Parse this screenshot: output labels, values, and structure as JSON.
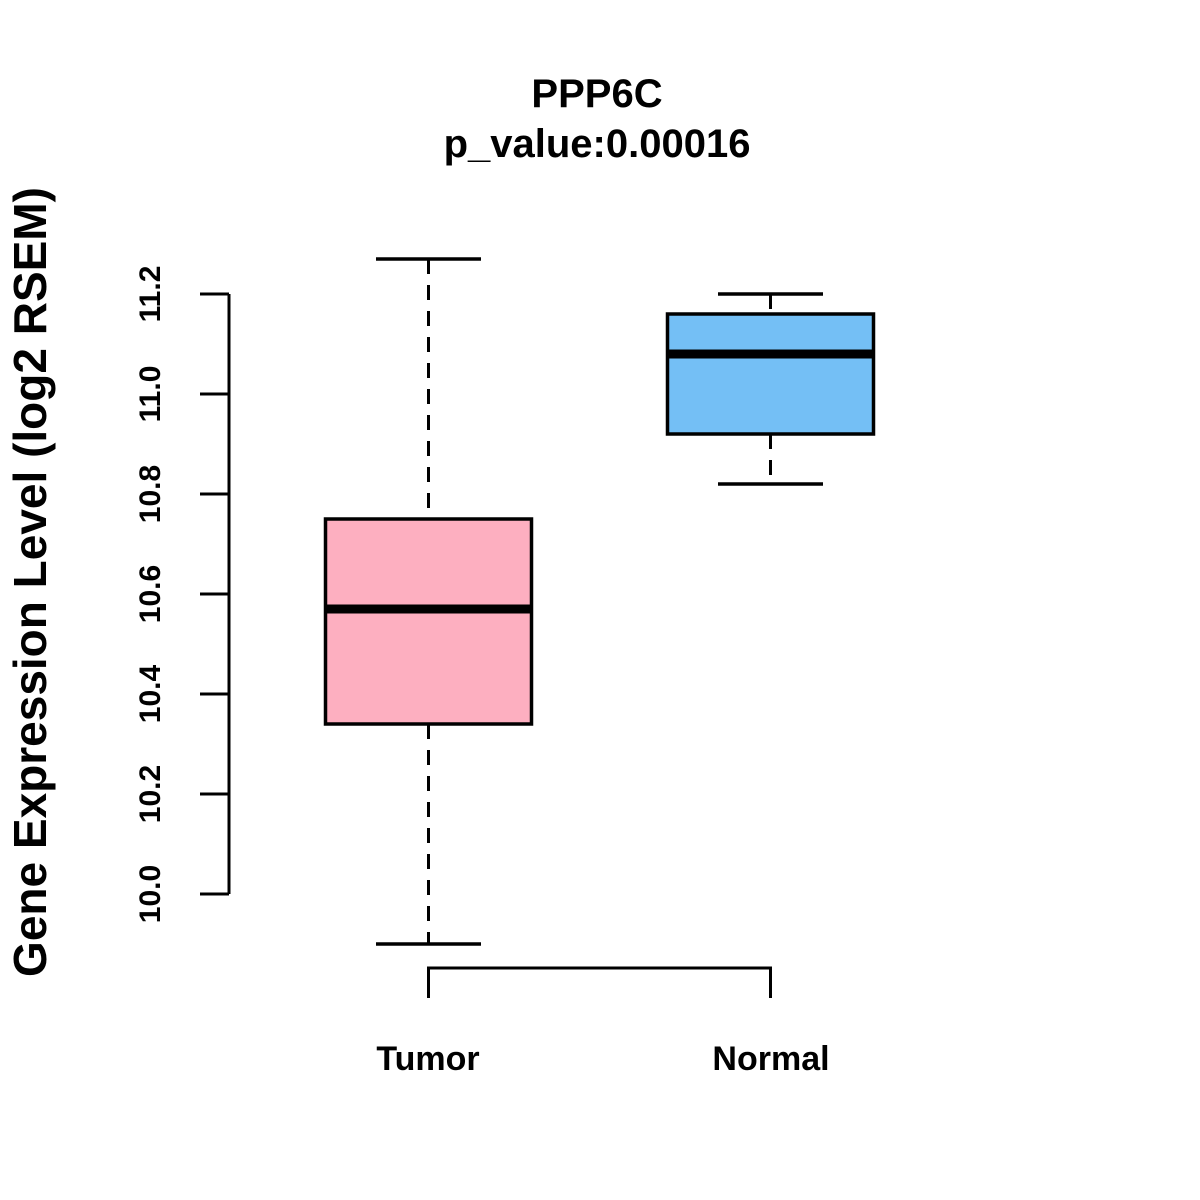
{
  "chart_data": {
    "type": "boxplot",
    "title": "PPP6C",
    "subtitle": "p_value:0.00016",
    "ylabel": "Gene Expression Level (log2 RSEM)",
    "categories": [
      "Tumor",
      "Normal"
    ],
    "yticks": [
      "10.0",
      "10.2",
      "10.4",
      "10.6",
      "10.8",
      "11.0",
      "11.2"
    ],
    "ylim": [
      10.0,
      11.2
    ],
    "grid": false,
    "legend": "none",
    "series": [
      {
        "name": "Tumor",
        "color": "#FDAFC0",
        "lower_whisker": 9.9,
        "q1": 10.34,
        "median": 10.57,
        "q3": 10.75,
        "upper_whisker": 11.27
      },
      {
        "name": "Normal",
        "color": "#74BFF5",
        "lower_whisker": 10.82,
        "q1": 10.92,
        "median": 11.08,
        "q3": 11.16,
        "upper_whisker": 11.2
      }
    ],
    "stroke_color": "#000000"
  }
}
